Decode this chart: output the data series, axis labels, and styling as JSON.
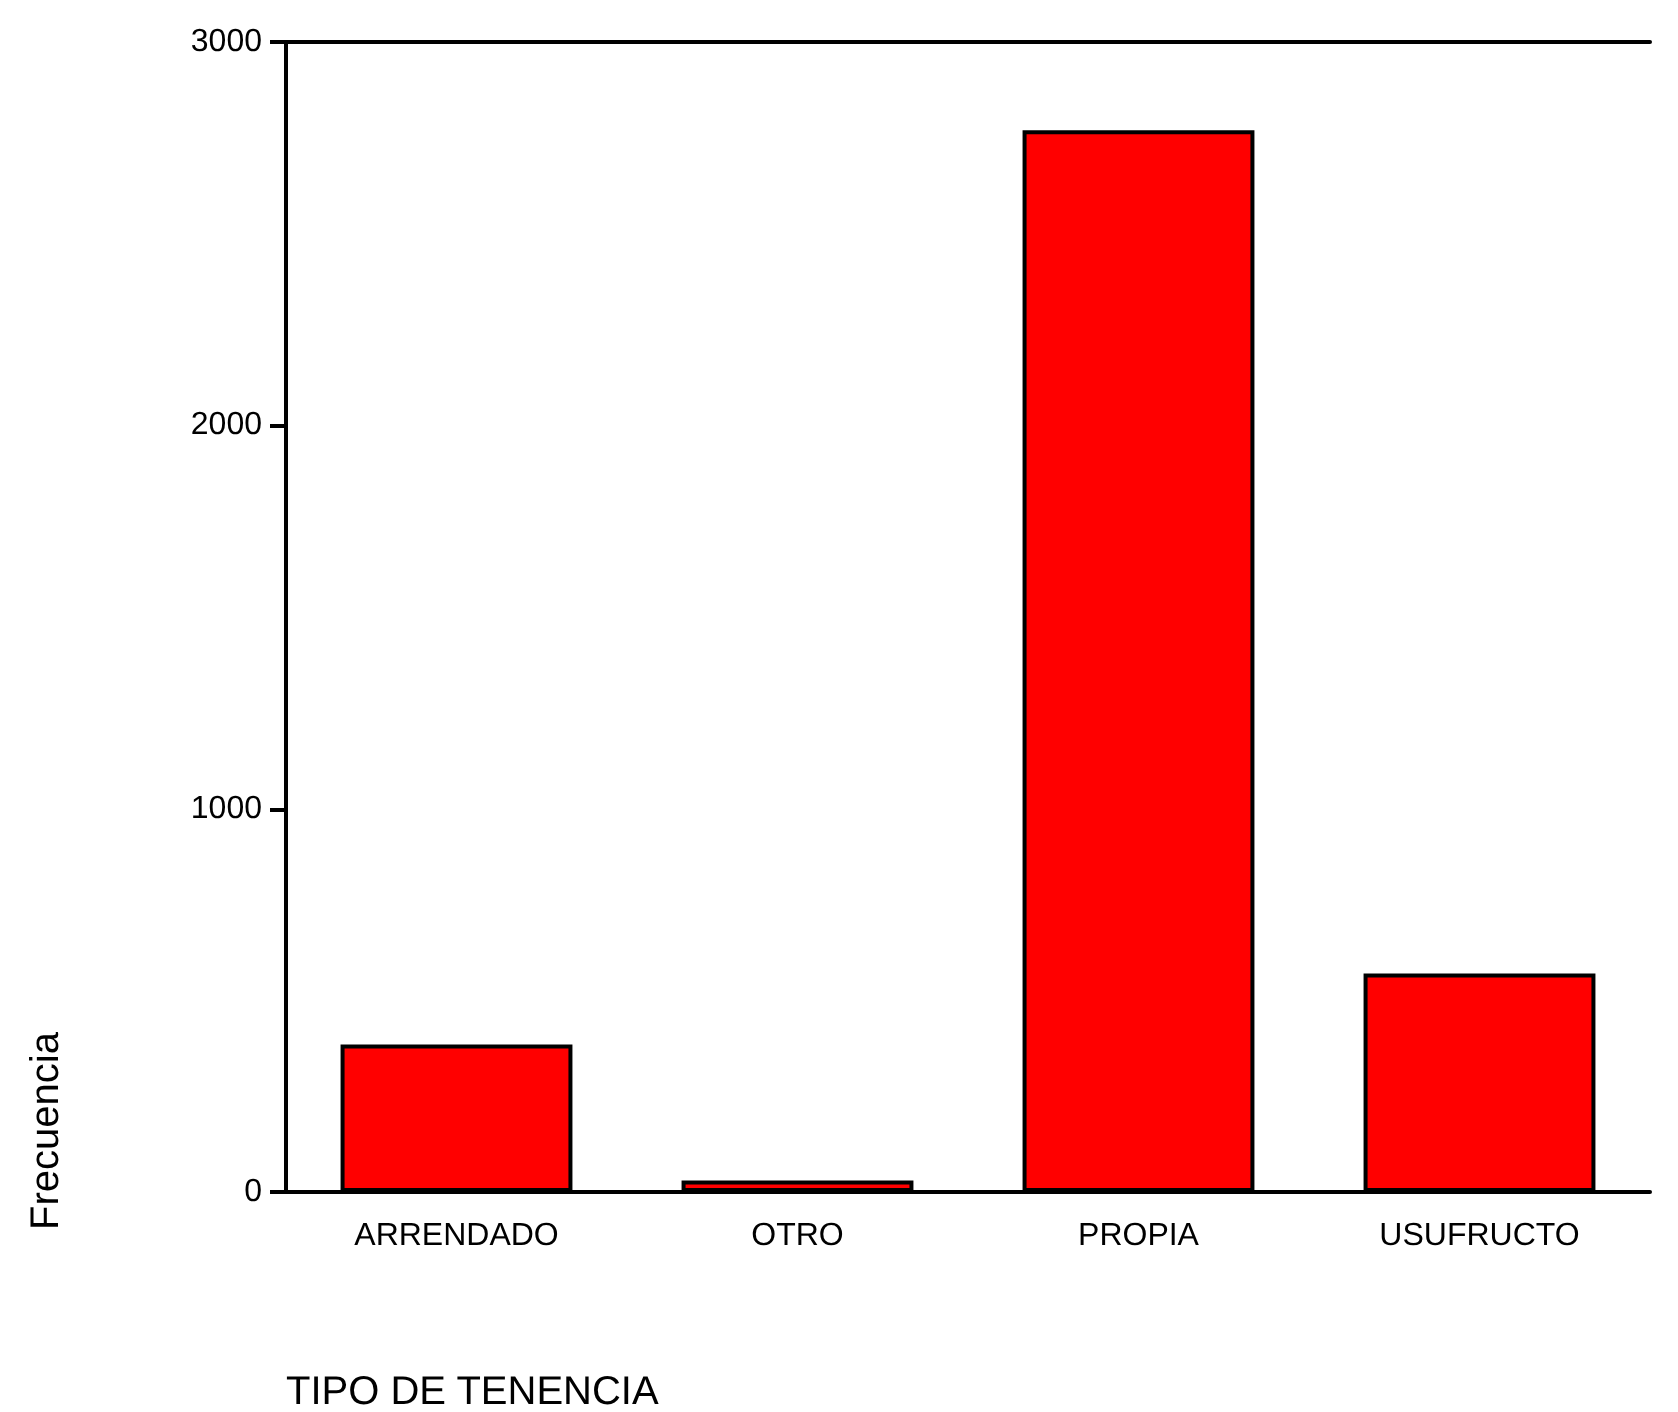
{
  "chart_data": {
    "type": "bar",
    "xlabel": "TIPO DE TENENCIA",
    "ylabel": "Frecuencia",
    "categories": [
      "ARRENDADO",
      "OTRO",
      "PROPIA",
      "USUFRUCTO"
    ],
    "values": [
      385,
      30,
      2770,
      570
    ],
    "color": "#ff0000",
    "ylim": [
      0,
      3000
    ],
    "yticks": [
      0,
      1000,
      2000,
      3000
    ],
    "grid": false
  }
}
